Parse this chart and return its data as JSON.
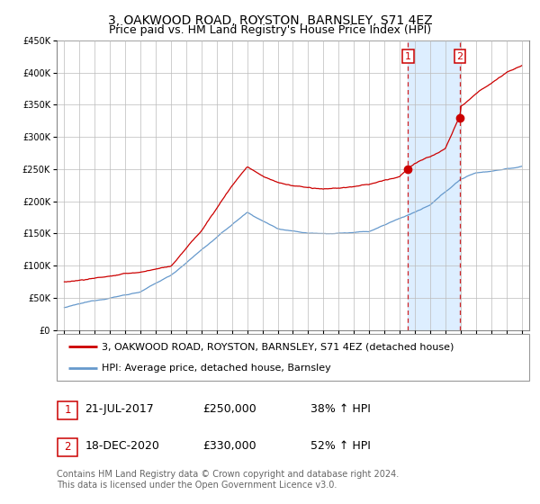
{
  "title": "3, OAKWOOD ROAD, ROYSTON, BARNSLEY, S71 4EZ",
  "subtitle": "Price paid vs. HM Land Registry's House Price Index (HPI)",
  "ylim": [
    0,
    450000
  ],
  "yticks": [
    0,
    50000,
    100000,
    150000,
    200000,
    250000,
    300000,
    350000,
    400000,
    450000
  ],
  "legend_line1": "3, OAKWOOD ROAD, ROYSTON, BARNSLEY, S71 4EZ (detached house)",
  "legend_line2": "HPI: Average price, detached house, Barnsley",
  "marker1_date": 2017.55,
  "marker1_value": 250000,
  "marker2_date": 2020.96,
  "marker2_value": 330000,
  "vline1": 2017.55,
  "vline2": 2020.96,
  "table_row1": [
    "1",
    "21-JUL-2017",
    "£250,000",
    "38% ↑ HPI"
  ],
  "table_row2": [
    "2",
    "18-DEC-2020",
    "£330,000",
    "52% ↑ HPI"
  ],
  "footer": "Contains HM Land Registry data © Crown copyright and database right 2024.\nThis data is licensed under the Open Government Licence v3.0.",
  "red_color": "#cc0000",
  "blue_color": "#6699cc",
  "shade_color": "#ddeeff",
  "background_color": "#ffffff",
  "grid_color": "#bbbbbb",
  "title_fontsize": 10,
  "subtitle_fontsize": 9,
  "tick_fontsize": 7,
  "legend_fontsize": 8,
  "footer_fontsize": 7,
  "xmin": 1994.5,
  "xmax": 2025.5
}
